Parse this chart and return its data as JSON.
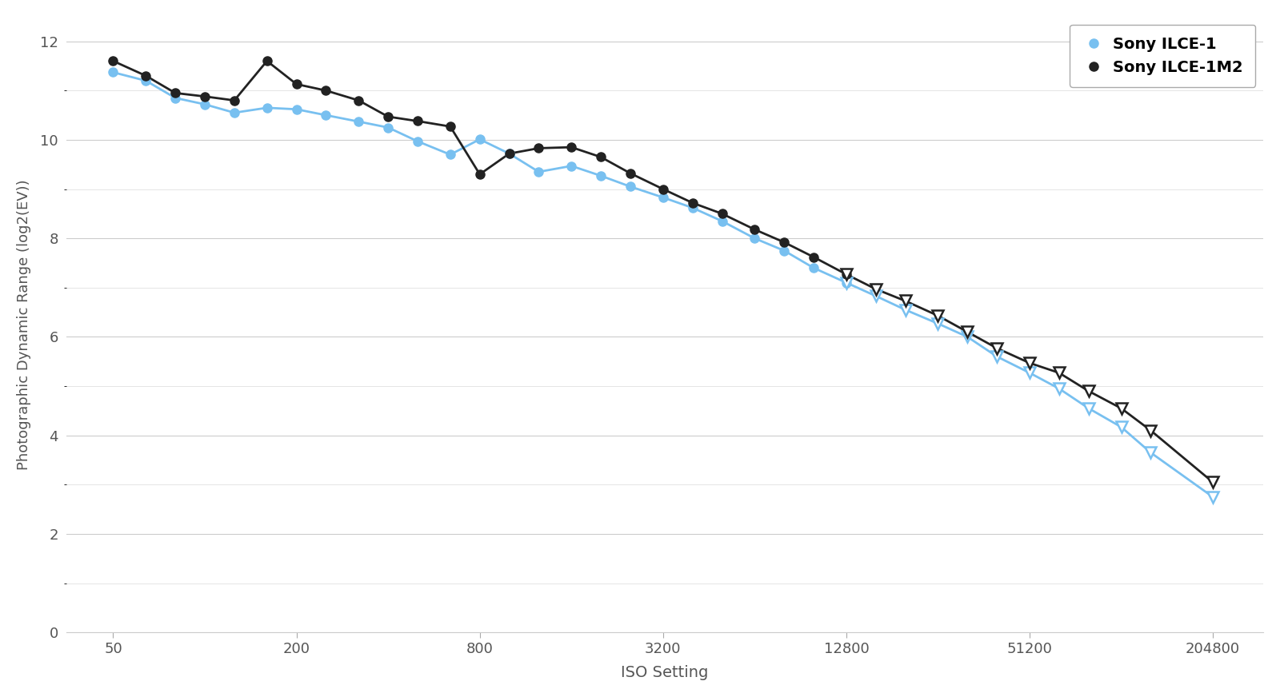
{
  "xlabel": "ISO Setting",
  "ylabel": "Photographic Dynamic Range (log2(EV))",
  "bg_color": "#ffffff",
  "line1_label": "Sony ILCE-1",
  "line2_label": "Sony ILCE-1M2",
  "line1_color": "#78c0f0",
  "line2_color": "#222222",
  "ylim": [
    0,
    12.5
  ],
  "yticks": [
    0,
    2,
    4,
    6,
    8,
    10,
    12
  ],
  "iso_values": [
    50,
    64,
    80,
    100,
    125,
    160,
    200,
    250,
    320,
    400,
    500,
    640,
    800,
    1000,
    1250,
    1600,
    2000,
    2500,
    3200,
    4000,
    5000,
    6400,
    8000,
    10000,
    12800,
    16000,
    20000,
    25600,
    32000,
    40000,
    51200,
    64000,
    80000,
    102400,
    128000,
    204800
  ],
  "ilce1_dr": [
    11.37,
    11.2,
    10.85,
    10.72,
    10.55,
    10.65,
    10.62,
    10.5,
    10.37,
    10.25,
    9.97,
    9.7,
    10.01,
    9.72,
    9.35,
    9.47,
    9.27,
    9.05,
    8.83,
    8.62,
    8.35,
    8.0,
    7.75,
    7.4,
    7.1,
    6.83,
    6.55,
    6.27,
    6.0,
    5.6,
    5.27,
    4.95,
    4.55,
    4.17,
    3.65,
    2.75
  ],
  "ilce1m2_dr": [
    11.6,
    11.3,
    10.95,
    10.88,
    10.8,
    11.6,
    11.13,
    11.0,
    10.8,
    10.47,
    10.38,
    10.27,
    9.3,
    9.72,
    9.83,
    9.85,
    9.65,
    9.32,
    9.0,
    8.72,
    8.5,
    8.18,
    7.92,
    7.62,
    7.27,
    6.97,
    6.73,
    6.43,
    6.1,
    5.77,
    5.47,
    5.27,
    4.9,
    4.55,
    4.1,
    3.05
  ],
  "circle_to_triangle_idx": 24,
  "xtick_isos": [
    50,
    200,
    800,
    3200,
    12800,
    51200,
    204800
  ],
  "grid_minor_color": "#e0e0e0",
  "grid_major_color": "#cccccc"
}
